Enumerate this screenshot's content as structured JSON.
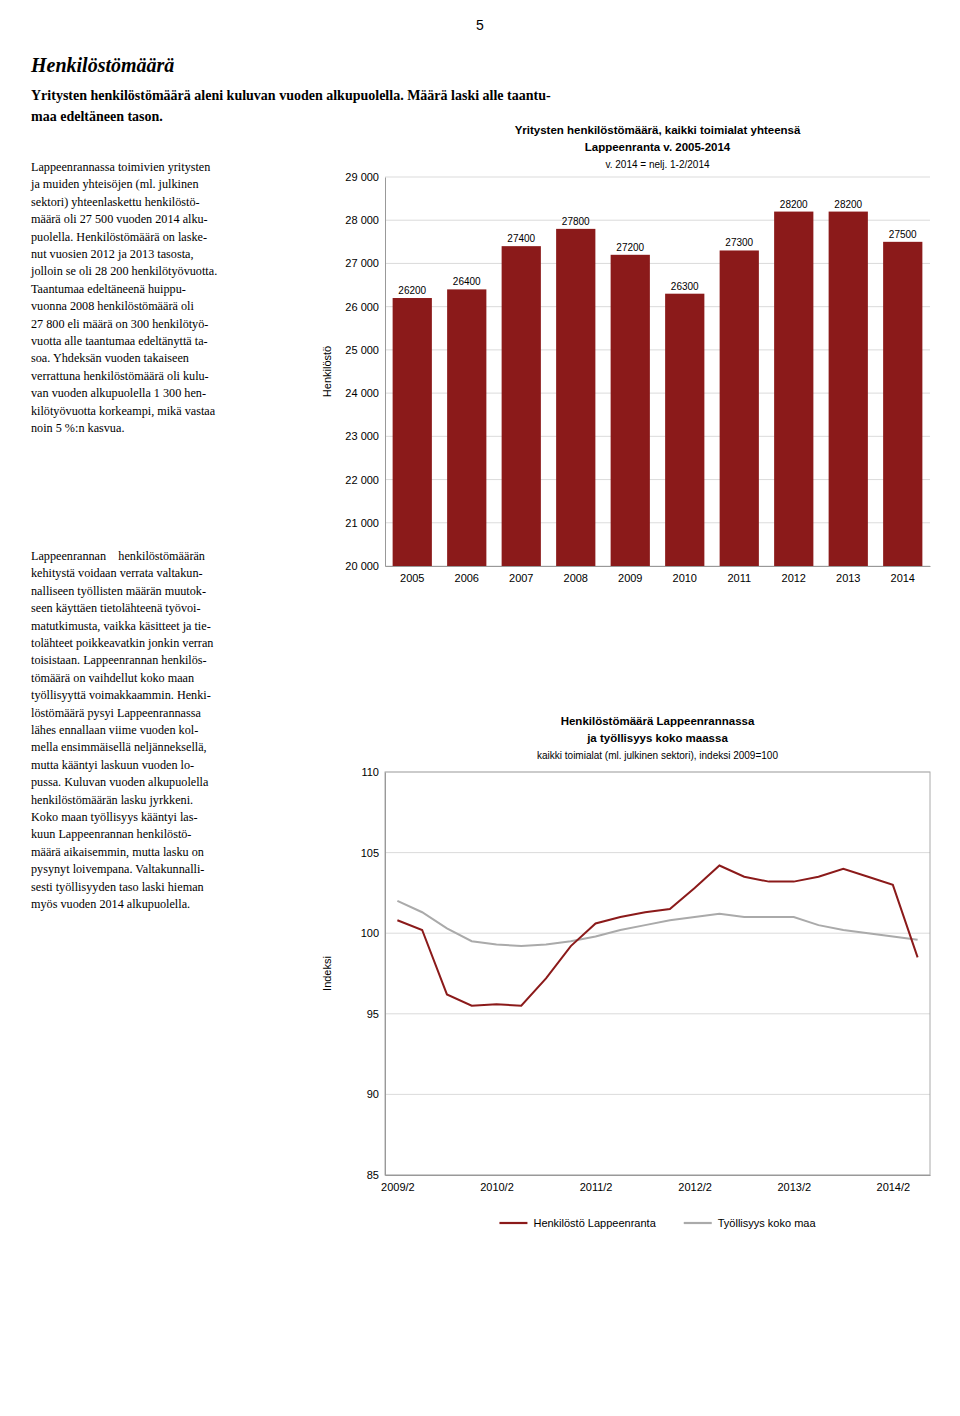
{
  "page_number": "5",
  "title": "Henkilöstömäärä",
  "subtitle": "Yritysten henkilöstömäärä aleni kuluvan vuoden alkupuolella. Määrä laski alle taantu-\nmaa edeltäneen tason.",
  "annotations": [
    "Lappeenrannassa toimivien yritysten\nja muiden yhteisöjen (ml. julkinen\nsektori) yhteenlaskettu henkilöstö-\nmäärä oli 27 500 vuoden 2014 alku-\npuolella. Henkilöstömäärä on laske-\nnut vuosien 2012 ja 2013 tasosta,\njolloin se oli 28 200 henkilötyövuotta.\nTaantumaa edeltäneenä huippu-\nvuonna 2008 henkilöstömäärä oli\n27 800 eli määrä on 300 henkilötyö-\nvuotta alle taantumaa edeltänyttä ta-\nsoa. Yhdeksän vuoden takaiseen\nverrattuna henkilöstömäärä oli kulu-\nvan vuoden alkupuolella 1 300 hen-\nkilötyövuotta korkeampi, mikä vastaa\nnoin 5 %:n kasvua.",
    "Lappeenrannan    henkilöstömäärän\nkehitystä voidaan verrata valtakun-\nnalliseen työllisten määrän muutok-\nseen käyttäen tietolähteenä työvoi-\nmatutkimusta, vaikka käsitteet ja tie-\ntolähteet poikkeavatkin jonkin verran\ntoisistaan. Lappeenrannan henkilös-\ntömäärä on vaihdellut koko maan\ntyöllisyyttä voimakkaammin. Henki-\nlöstömäärä pysyi Lappeenrannassa\nlähes ennallaan viime vuoden kol-\nmella ensimmäisellä neljänneksellä,\nmutta kääntyi laskuun vuoden lo-\npussa. Kuluvan vuoden alkupuolella\nhenkilöstömäärän lasku jyrkkeni.\nKoko maan työllisyys kääntyi las-\nkuun Lappeenrannan henkilöstö-\nmäärä aikaisemmin, mutta lasku on\npysynyt loivempana. Valtakunnalli-\nsesti työllisyyden taso laski hieman\nmyös vuoden 2014 alkupuolella."
  ],
  "chart_data": [
    {
      "type": "bar",
      "title": "Yritysten henkilöstömäärä, kaikki toimialat yhteensä\nLappeenranta v. 2005-2014",
      "subtitle": "v. 2014 = nelj. 1-2/2014",
      "categories": [
        "2005",
        "2006",
        "2007",
        "2008",
        "2009",
        "2010",
        "2011",
        "2012",
        "2013",
        "2014"
      ],
      "values": [
        26200,
        26400,
        27400,
        27800,
        27200,
        26300,
        27300,
        28200,
        28200,
        27500
      ],
      "color": "#8B1A1A",
      "ylabel": "Henkilöstö",
      "ylim": [
        20000,
        29000
      ],
      "yticks": [
        {
          "value": 20000,
          "label": "20 000"
        },
        {
          "value": 21000,
          "label": "21 000"
        },
        {
          "value": 22000,
          "label": "22 000"
        },
        {
          "value": 23000,
          "label": "23 000"
        },
        {
          "value": 24000,
          "label": "24 000"
        },
        {
          "value": 25000,
          "label": "25 000"
        },
        {
          "value": 26000,
          "label": "26 000"
        },
        {
          "value": 27000,
          "label": "27 000"
        },
        {
          "value": 28000,
          "label": "28 000"
        },
        {
          "value": 29000,
          "label": "29 000"
        }
      ],
      "grid": true,
      "data_labels": true
    },
    {
      "type": "line",
      "title": "Henkilöstömäärä Lappeenrannassa\nja työllisyys koko maassa",
      "subtitle": "kaikki toimialat (ml. julkinen sektori), indeksi 2009=100",
      "categories": [
        "2009/2",
        null,
        null,
        null,
        "2010/2",
        null,
        null,
        null,
        "2011/2",
        null,
        null,
        null,
        "2012/2",
        null,
        null,
        null,
        "2013/2",
        null,
        null,
        null,
        "2014/2",
        null
      ],
      "series": [
        {
          "name": "Henkilöstö Lappeenranta",
          "color": "#8B1A1A",
          "values": [
            100.8,
            100.2,
            96.2,
            95.5,
            95.6,
            95.5,
            97.2,
            99.2,
            100.6,
            101.0,
            101.3,
            101.5,
            102.8,
            104.2,
            103.5,
            103.2,
            103.2,
            103.5,
            104.0,
            103.5,
            103.0,
            98.5
          ]
        },
        {
          "name": "Työllisyys koko maa",
          "color": "#AAAAAA",
          "values": [
            102.0,
            101.3,
            100.3,
            99.5,
            99.3,
            99.2,
            99.3,
            99.5,
            99.8,
            100.2,
            100.5,
            100.8,
            101.0,
            101.2,
            101.0,
            101.0,
            101.0,
            100.5,
            100.2,
            100.0,
            99.8,
            99.6
          ]
        }
      ],
      "ylabel": "Indeksi",
      "ylim": [
        85,
        110
      ],
      "yticks": [
        85,
        90,
        95,
        100,
        105,
        110
      ],
      "grid": true,
      "legend": "bottom"
    }
  ]
}
